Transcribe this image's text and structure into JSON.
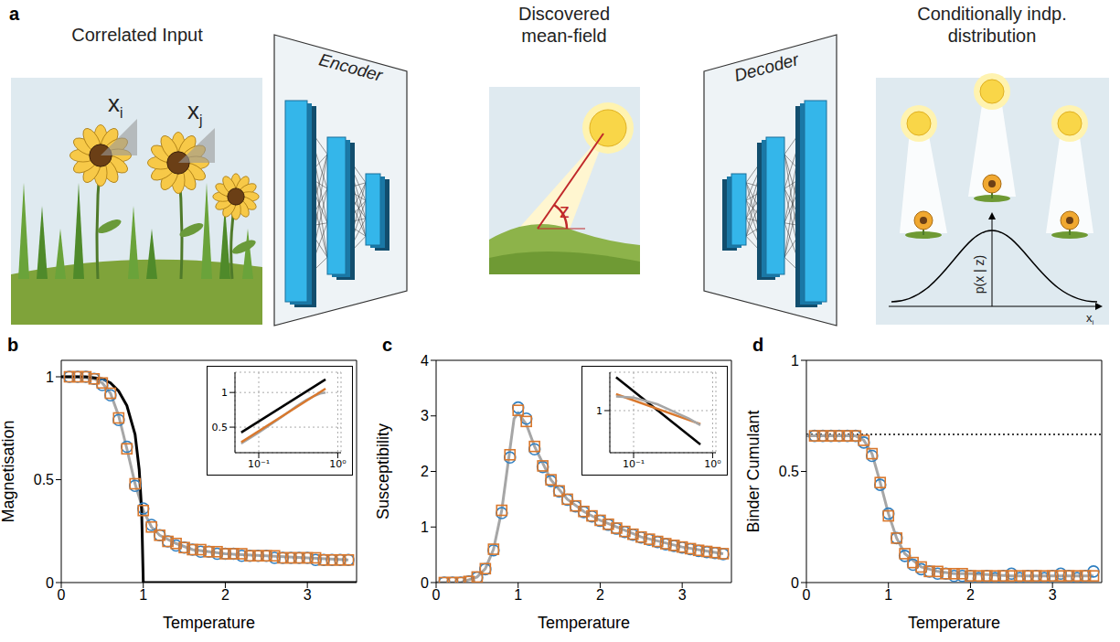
{
  "diagram": {
    "panel": "a",
    "titles": {
      "input": "Correlated Input",
      "encoder": "Encoder",
      "latent": "Discovered mean-field",
      "decoder": "Decoder",
      "output": "Conditionally indp. distribution"
    },
    "labels": {
      "xi": {
        "text": "x",
        "sub": "i"
      },
      "xj": {
        "text": "x",
        "sub": "j"
      },
      "z": "z",
      "density": "p(x | z)",
      "axis": {
        "text": "x",
        "sub": "i"
      }
    }
  },
  "chart_data": [
    {
      "panel": "b",
      "type": "line",
      "x_label": "Temperature",
      "y_label": "Magnetisation",
      "xlim": [
        0,
        3.6
      ],
      "xticks": [
        0,
        1,
        2,
        3
      ],
      "ylim": [
        0,
        1.08
      ],
      "yticks": [
        0,
        0.5,
        1
      ],
      "series": [
        {
          "type": "scatter",
          "marker": "circle",
          "color": "#2f7fc1",
          "x": [
            0.1,
            0.2,
            0.3,
            0.4,
            0.5,
            0.6,
            0.7,
            0.8,
            0.9,
            1.0,
            1.1,
            1.2,
            1.3,
            1.4,
            1.5,
            1.6,
            1.7,
            1.8,
            1.9,
            2.0,
            2.1,
            2.2,
            2.3,
            2.4,
            2.5,
            2.6,
            2.7,
            2.8,
            2.9,
            3.0,
            3.1,
            3.2,
            3.3,
            3.4,
            3.5
          ],
          "values": [
            1.0,
            1.0,
            1.0,
            0.99,
            0.96,
            0.91,
            0.79,
            0.66,
            0.47,
            0.36,
            0.28,
            0.23,
            0.2,
            0.18,
            0.17,
            0.16,
            0.15,
            0.15,
            0.14,
            0.14,
            0.14,
            0.13,
            0.13,
            0.13,
            0.13,
            0.12,
            0.12,
            0.12,
            0.12,
            0.12,
            0.11,
            0.11,
            0.11,
            0.11,
            0.11
          ]
        },
        {
          "type": "scatter",
          "marker": "square",
          "color": "#d9782d",
          "x": [
            0.1,
            0.2,
            0.3,
            0.4,
            0.5,
            0.6,
            0.7,
            0.8,
            0.9,
            1.0,
            1.1,
            1.2,
            1.3,
            1.4,
            1.5,
            1.6,
            1.7,
            1.8,
            1.9,
            2.0,
            2.1,
            2.2,
            2.3,
            2.4,
            2.5,
            2.6,
            2.7,
            2.8,
            2.9,
            3.0,
            3.1,
            3.2,
            3.3,
            3.4,
            3.5
          ],
          "values": [
            1.0,
            1.0,
            1.0,
            0.99,
            0.97,
            0.92,
            0.8,
            0.65,
            0.48,
            0.35,
            0.27,
            0.23,
            0.2,
            0.19,
            0.17,
            0.16,
            0.16,
            0.15,
            0.15,
            0.14,
            0.14,
            0.14,
            0.13,
            0.13,
            0.13,
            0.13,
            0.12,
            0.12,
            0.12,
            0.12,
            0.12,
            0.11,
            0.11,
            0.11,
            0.11
          ]
        },
        {
          "type": "line",
          "color": "#a6a6a6",
          "x": [
            0,
            0.2,
            0.4,
            0.5,
            0.6,
            0.7,
            0.8,
            0.9,
            1.0,
            1.1,
            1.2,
            1.4,
            1.6,
            1.8,
            2.0,
            2.5,
            3.0,
            3.5
          ],
          "values": [
            1,
            1,
            0.99,
            0.97,
            0.92,
            0.81,
            0.65,
            0.48,
            0.35,
            0.27,
            0.23,
            0.19,
            0.16,
            0.15,
            0.14,
            0.13,
            0.12,
            0.11
          ]
        },
        {
          "type": "line",
          "color": "#000000",
          "x": [
            0,
            0.3,
            0.5,
            0.6,
            0.7,
            0.8,
            0.9,
            0.95,
            0.98,
            1.0,
            1.5,
            2,
            3,
            3.6
          ],
          "values": [
            1,
            1,
            0.99,
            0.97,
            0.93,
            0.86,
            0.72,
            0.55,
            0.35,
            0,
            0,
            0,
            0,
            0
          ]
        }
      ],
      "inset": {
        "type": "line",
        "log": true,
        "grid": true,
        "xlim": [
          0.05,
          1.1
        ],
        "xticks": [
          {
            "value": 0.1,
            "label": "10⁻¹"
          },
          {
            "value": 1,
            "label": "10⁰"
          }
        ],
        "ylim": [
          0.3,
          1.5
        ],
        "yticks": [
          0.5,
          1
        ],
        "series": [
          {
            "type": "line",
            "color": "#000000",
            "x": [
              0.06,
              0.7
            ],
            "values": [
              0.45,
              1.3
            ]
          },
          {
            "type": "line",
            "color": "#a6a6a6",
            "x": [
              0.06,
              0.1,
              0.2,
              0.3,
              0.4,
              0.5,
              0.6,
              0.7
            ],
            "values": [
              0.36,
              0.45,
              0.62,
              0.76,
              0.86,
              0.93,
              0.98,
              1.0
            ]
          },
          {
            "type": "line",
            "color": "#d9782d",
            "x": [
              0.06,
              0.7
            ],
            "values": [
              0.37,
              1.08
            ]
          }
        ]
      }
    },
    {
      "panel": "c",
      "type": "line",
      "x_label": "Temperature",
      "y_label": "Susceptibility",
      "xlim": [
        0,
        3.6
      ],
      "xticks": [
        0,
        1,
        2,
        3
      ],
      "ylim": [
        0,
        4
      ],
      "yticks": [
        0,
        1,
        2,
        3,
        4
      ],
      "series": [
        {
          "type": "scatter",
          "marker": "circle",
          "color": "#2f7fc1",
          "x": [
            0.1,
            0.2,
            0.3,
            0.4,
            0.5,
            0.6,
            0.7,
            0.8,
            0.9,
            1.0,
            1.1,
            1.2,
            1.3,
            1.4,
            1.5,
            1.6,
            1.7,
            1.8,
            1.9,
            2.0,
            2.1,
            2.2,
            2.3,
            2.4,
            2.5,
            2.6,
            2.7,
            2.8,
            2.9,
            3.0,
            3.1,
            3.2,
            3.3,
            3.4,
            3.5
          ],
          "values": [
            0,
            0,
            0,
            0.02,
            0.09,
            0.24,
            0.58,
            1.25,
            2.25,
            3.15,
            2.95,
            2.4,
            2.08,
            1.83,
            1.64,
            1.49,
            1.37,
            1.27,
            1.19,
            1.11,
            1.04,
            0.97,
            0.91,
            0.86,
            0.81,
            0.77,
            0.73,
            0.69,
            0.66,
            0.63,
            0.6,
            0.57,
            0.55,
            0.53,
            0.51
          ]
        },
        {
          "type": "scatter",
          "marker": "square",
          "color": "#d9782d",
          "x": [
            0.1,
            0.2,
            0.3,
            0.4,
            0.5,
            0.6,
            0.7,
            0.8,
            0.9,
            1.0,
            1.1,
            1.2,
            1.3,
            1.4,
            1.5,
            1.6,
            1.7,
            1.8,
            1.9,
            2.0,
            2.1,
            2.2,
            2.3,
            2.4,
            2.5,
            2.6,
            2.7,
            2.8,
            2.9,
            3.0,
            3.1,
            3.2,
            3.3,
            3.4,
            3.5
          ],
          "values": [
            0,
            0,
            0,
            0.02,
            0.1,
            0.25,
            0.6,
            1.3,
            2.3,
            3.1,
            2.9,
            2.45,
            2.1,
            1.85,
            1.65,
            1.5,
            1.38,
            1.28,
            1.2,
            1.12,
            1.05,
            0.98,
            0.92,
            0.87,
            0.82,
            0.78,
            0.74,
            0.7,
            0.67,
            0.64,
            0.61,
            0.58,
            0.56,
            0.54,
            0.52
          ]
        },
        {
          "type": "line",
          "color": "#a6a6a6",
          "x": [
            0,
            0.3,
            0.5,
            0.6,
            0.7,
            0.8,
            0.9,
            0.95,
            1.0,
            1.1,
            1.2,
            1.4,
            1.6,
            1.8,
            2.0,
            2.5,
            3.0,
            3.5
          ],
          "values": [
            0,
            0,
            0.1,
            0.25,
            0.6,
            1.3,
            2.4,
            2.95,
            3.05,
            2.85,
            2.45,
            1.85,
            1.5,
            1.28,
            1.12,
            0.82,
            0.64,
            0.52
          ]
        }
      ],
      "inset": {
        "type": "line",
        "log": true,
        "grid": true,
        "xlim": [
          0.05,
          1.1
        ],
        "xticks": [
          {
            "value": 0.1,
            "label": "10⁻¹"
          },
          {
            "value": 1,
            "label": "10⁰"
          }
        ],
        "ylim": [
          0.3,
          3
        ],
        "yticks": [
          1
        ],
        "series": [
          {
            "type": "line",
            "color": "#000000",
            "x": [
              0.06,
              0.7
            ],
            "values": [
              2.6,
              0.38
            ]
          },
          {
            "type": "line",
            "color": "#d9782d",
            "x": [
              0.06,
              0.7
            ],
            "values": [
              1.6,
              0.68
            ]
          },
          {
            "type": "line",
            "color": "#a6a6a6",
            "x": [
              0.06,
              0.1,
              0.2,
              0.3,
              0.4,
              0.5,
              0.7
            ],
            "values": [
              1.5,
              1.45,
              1.2,
              1.0,
              0.88,
              0.8,
              0.66
            ]
          }
        ]
      }
    },
    {
      "panel": "d",
      "type": "line",
      "x_label": "Temperature",
      "y_label": "Binder Cumulant",
      "xlim": [
        0,
        3.6
      ],
      "xticks": [
        0,
        1,
        2,
        3
      ],
      "ylim": [
        0,
        1
      ],
      "yticks": [
        0,
        0.5,
        1
      ],
      "series": [
        {
          "type": "line",
          "color": "#000000",
          "line_style": "dotted",
          "x": [
            0,
            3.6
          ],
          "values": [
            0.667,
            0.667
          ]
        },
        {
          "type": "scatter",
          "marker": "circle",
          "color": "#2f7fc1",
          "x": [
            0.1,
            0.2,
            0.3,
            0.4,
            0.5,
            0.6,
            0.7,
            0.8,
            0.9,
            1.0,
            1.1,
            1.2,
            1.3,
            1.4,
            1.5,
            1.6,
            1.7,
            1.8,
            1.9,
            2.0,
            2.1,
            2.2,
            2.3,
            2.4,
            2.5,
            2.6,
            2.7,
            2.8,
            2.9,
            3.0,
            3.1,
            3.2,
            3.3,
            3.4,
            3.5
          ],
          "values": [
            0.66,
            0.66,
            0.66,
            0.66,
            0.66,
            0.66,
            0.63,
            0.57,
            0.44,
            0.31,
            0.2,
            0.12,
            0.08,
            0.06,
            0.05,
            0.04,
            0.04,
            0.03,
            0.03,
            0.03,
            0.02,
            0.03,
            0.02,
            0.03,
            0.04,
            0.02,
            0.03,
            0.03,
            0.02,
            0.03,
            0.04,
            0.03,
            0.02,
            0.03,
            0.05
          ]
        },
        {
          "type": "scatter",
          "marker": "square",
          "color": "#d9782d",
          "x": [
            0.1,
            0.2,
            0.3,
            0.4,
            0.5,
            0.6,
            0.7,
            0.8,
            0.9,
            1.0,
            1.1,
            1.2,
            1.3,
            1.4,
            1.5,
            1.6,
            1.7,
            1.8,
            1.9,
            2.0,
            2.1,
            2.2,
            2.3,
            2.4,
            2.5,
            2.6,
            2.7,
            2.8,
            2.9,
            3.0,
            3.1,
            3.2,
            3.3,
            3.4,
            3.5
          ],
          "values": [
            0.66,
            0.66,
            0.66,
            0.66,
            0.66,
            0.66,
            0.64,
            0.58,
            0.45,
            0.3,
            0.2,
            0.13,
            0.09,
            0.07,
            0.05,
            0.05,
            0.04,
            0.04,
            0.04,
            0.03,
            0.03,
            0.03,
            0.03,
            0.03,
            0.03,
            0.03,
            0.03,
            0.03,
            0.03,
            0.03,
            0.03,
            0.03,
            0.03,
            0.03,
            0.03
          ]
        },
        {
          "type": "line",
          "color": "#a6a6a6",
          "x": [
            0,
            0.3,
            0.5,
            0.6,
            0.7,
            0.8,
            0.9,
            1.0,
            1.1,
            1.2,
            1.4,
            1.6,
            1.8,
            2.0,
            2.5,
            3.0,
            3.5
          ],
          "values": [
            0.66,
            0.66,
            0.66,
            0.66,
            0.64,
            0.58,
            0.45,
            0.31,
            0.2,
            0.13,
            0.07,
            0.05,
            0.04,
            0.04,
            0.03,
            0.03,
            0.03
          ]
        }
      ]
    }
  ]
}
